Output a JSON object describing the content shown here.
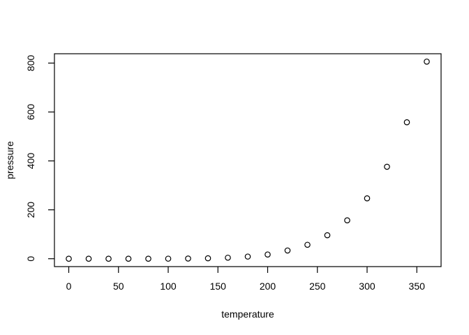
{
  "chart_data": {
    "type": "scatter",
    "title": "",
    "xlabel": "temperature",
    "ylabel": "pressure",
    "x": [
      0,
      20,
      40,
      60,
      80,
      100,
      120,
      140,
      160,
      180,
      200,
      220,
      240,
      260,
      280,
      300,
      320,
      340,
      360
    ],
    "y": [
      0.0002,
      0.0012,
      0.006,
      0.03,
      0.09,
      0.27,
      0.75,
      1.85,
      4.2,
      8.8,
      17.3,
      33.7,
      57,
      96,
      157,
      247,
      376,
      558,
      806
    ],
    "xticks": [
      0,
      50,
      100,
      150,
      200,
      250,
      300,
      350
    ],
    "yticks": [
      0,
      200,
      400,
      600,
      800
    ],
    "xlim": [
      -14.4,
      374.4
    ],
    "ylim": [
      -32.2,
      838.2
    ],
    "grid": false,
    "legend": "none",
    "marker": "open-circle",
    "marker_radius": 3.7,
    "stroke_color": "#000000",
    "background_color": "#ffffff"
  }
}
